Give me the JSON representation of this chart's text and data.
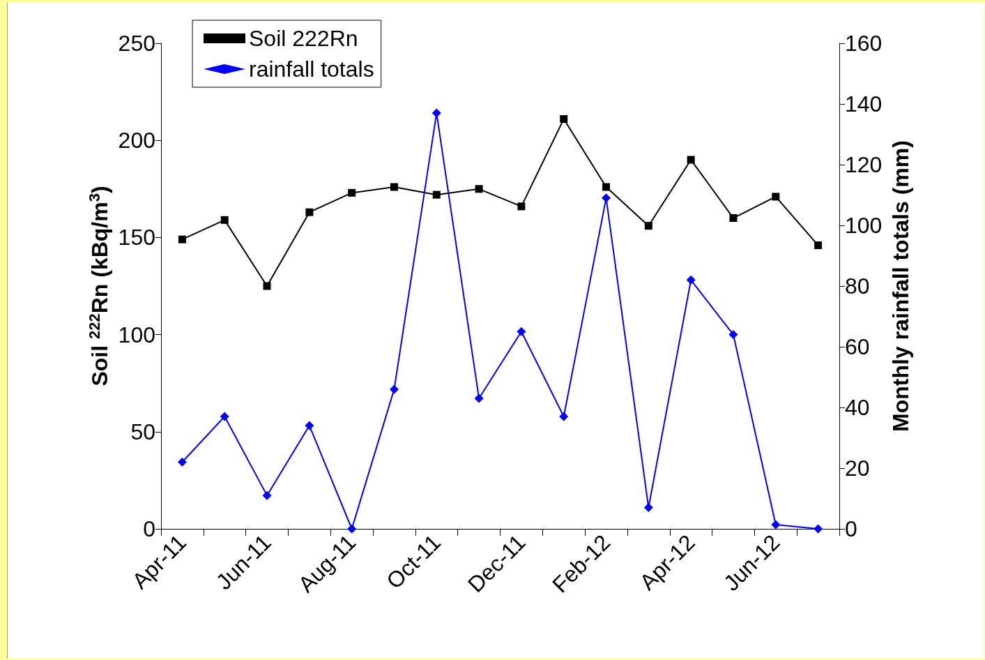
{
  "chart_data": {
    "type": "line",
    "categories": [
      "Apr-11",
      null,
      "Jun-11",
      null,
      "Aug-11",
      null,
      "Oct-11",
      null,
      "Dec-11",
      null,
      "Feb-12",
      null,
      "Apr-12",
      null,
      "Jun-12",
      null
    ],
    "series": [
      {
        "name": "Soil 222Rn",
        "color": "#000000",
        "marker": "square",
        "values": [
          149,
          159,
          125,
          163,
          173,
          176,
          172,
          175,
          166,
          211,
          176,
          156,
          190,
          160,
          171,
          146
        ]
      },
      {
        "name": "rainfall totals",
        "color": "#0000ff",
        "marker": "diamond",
        "axis": "y2",
        "values": [
          22,
          37,
          11,
          34,
          0,
          46,
          137,
          43,
          65,
          37,
          109,
          7,
          82,
          64,
          1.4,
          0
        ]
      }
    ],
    "ylabel": "Soil $^{222}$Rn (kBq/m$^{3}$)",
    "y2label": "Monthly rainfall totals (mm)",
    "ylim": [
      0,
      250
    ],
    "yticks": [
      0,
      50,
      100,
      150,
      200,
      250
    ],
    "y2lim": [
      0,
      160
    ],
    "y2ticks": [
      0,
      20,
      40,
      60,
      80,
      100,
      120,
      140,
      160
    ],
    "grid": false,
    "legend": "top left",
    "line_style": "solid"
  }
}
